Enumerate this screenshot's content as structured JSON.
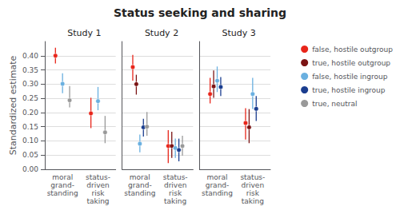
{
  "title": "Status seeking and sharing",
  "legend": "upper right",
  "chart_data": [
    {
      "type": "scatter",
      "title": "Study 1",
      "ylabel": "Standardized estimate",
      "marker": "o",
      "grid": true,
      "categories": [
        "moral\ngrand-\nstanding",
        "status-\ndriven\nrisk\ntaking"
      ],
      "ylim": [
        0.0,
        0.45
      ],
      "yticks": [
        {
          "value": 0.0,
          "label": "0.00"
        },
        0.05,
        {
          "value": 0.1,
          "label": "0.10"
        },
        0.15,
        {
          "value": 0.2,
          "label": "0.20"
        },
        0.25,
        {
          "value": 0.3,
          "label": "0.30"
        },
        0.35,
        {
          "value": 0.4,
          "label": "0.40"
        }
      ],
      "series": [
        {
          "name": "false, hostile outgroup",
          "color": "#e8251a",
          "values": [
            0.4,
            0.197
          ],
          "lo": [
            0.373,
            0.145
          ],
          "hi": [
            0.428,
            0.252
          ]
        },
        {
          "name": "true, hostile outgroup",
          "color": "#7b1414",
          "values": [
            null,
            null
          ],
          "lo": [
            null,
            null
          ],
          "hi": [
            null,
            null
          ]
        },
        {
          "name": "false, hostile ingroup",
          "color": "#6ab0e0",
          "values": [
            0.301,
            0.24
          ],
          "lo": [
            0.268,
            0.208
          ],
          "hi": [
            0.338,
            0.29
          ]
        },
        {
          "name": "true, hostile ingroup",
          "color": "#1a3d8f",
          "values": [
            null,
            null
          ],
          "lo": [
            null,
            null
          ],
          "hi": [
            null,
            null
          ]
        },
        {
          "name": "true, neutral",
          "color": "#999999",
          "values": [
            0.243,
            0.13
          ],
          "lo": [
            0.218,
            0.092
          ],
          "hi": [
            0.293,
            0.188
          ]
        }
      ]
    },
    {
      "type": "scatter",
      "title": "Study 2",
      "marker": "o",
      "grid": true,
      "tick_labels": "x",
      "categories": [
        "moral\ngrand-\nstanding",
        "status-\ndriven\nrisk\ntaking"
      ],
      "ylim": [
        0.0,
        0.45
      ],
      "yticks": [
        0.0,
        0.05,
        0.1,
        0.15,
        0.2,
        0.25,
        0.3,
        0.35,
        0.4
      ],
      "series": [
        {
          "name": "false, hostile outgroup",
          "color": "#e8251a",
          "values": [
            0.36,
            0.082
          ],
          "lo": [
            0.312,
            0.022
          ],
          "hi": [
            0.403,
            0.138
          ]
        },
        {
          "name": "true, hostile outgroup",
          "color": "#7b1414",
          "values": [
            0.3,
            0.082
          ],
          "lo": [
            0.263,
            0.04
          ],
          "hi": [
            0.333,
            0.132
          ]
        },
        {
          "name": "false, hostile ingroup",
          "color": "#6ab0e0",
          "values": [
            0.09,
            0.075
          ],
          "lo": [
            0.06,
            0.04
          ],
          "hi": [
            0.122,
            0.108
          ]
        },
        {
          "name": "true, hostile ingroup",
          "color": "#1a3d8f",
          "values": [
            0.148,
            0.068
          ],
          "lo": [
            0.115,
            0.028
          ],
          "hi": [
            0.178,
            0.108
          ]
        },
        {
          "name": "true, neutral",
          "color": "#999999",
          "values": [
            0.15,
            0.082
          ],
          "lo": [
            0.118,
            0.048
          ],
          "hi": [
            0.202,
            0.118
          ]
        }
      ]
    },
    {
      "type": "scatter",
      "title": "Study 3",
      "marker": "o",
      "grid": true,
      "tick_labels": "x",
      "categories": [
        "moral\ngrand-\nstanding",
        "status-\ndriven\nrisk\ntaking"
      ],
      "ylim": [
        0.0,
        0.45
      ],
      "yticks": [
        0.0,
        0.05,
        0.1,
        0.15,
        0.2,
        0.25,
        0.3,
        0.35,
        0.4
      ],
      "series": [
        {
          "name": "false, hostile outgroup",
          "color": "#e8251a",
          "values": [
            0.265,
            0.163
          ],
          "lo": [
            0.232,
            0.105
          ],
          "hi": [
            0.322,
            0.215
          ]
        },
        {
          "name": "true, hostile outgroup",
          "color": "#7b1414",
          "values": [
            0.292,
            0.148
          ],
          "lo": [
            0.252,
            0.092
          ],
          "hi": [
            0.348,
            0.212
          ]
        },
        {
          "name": "false, hostile ingroup",
          "color": "#6ab0e0",
          "values": [
            0.312,
            0.265
          ],
          "lo": [
            0.272,
            0.212
          ],
          "hi": [
            0.362,
            0.322
          ]
        },
        {
          "name": "true, hostile ingroup",
          "color": "#1a3d8f",
          "values": [
            0.29,
            0.213
          ],
          "lo": [
            0.258,
            0.17
          ],
          "hi": [
            0.325,
            0.258
          ]
        },
        {
          "name": "true, neutral",
          "color": "#999999",
          "values": [
            null,
            null
          ],
          "lo": [
            null,
            null
          ],
          "hi": [
            null,
            null
          ]
        }
      ]
    }
  ]
}
